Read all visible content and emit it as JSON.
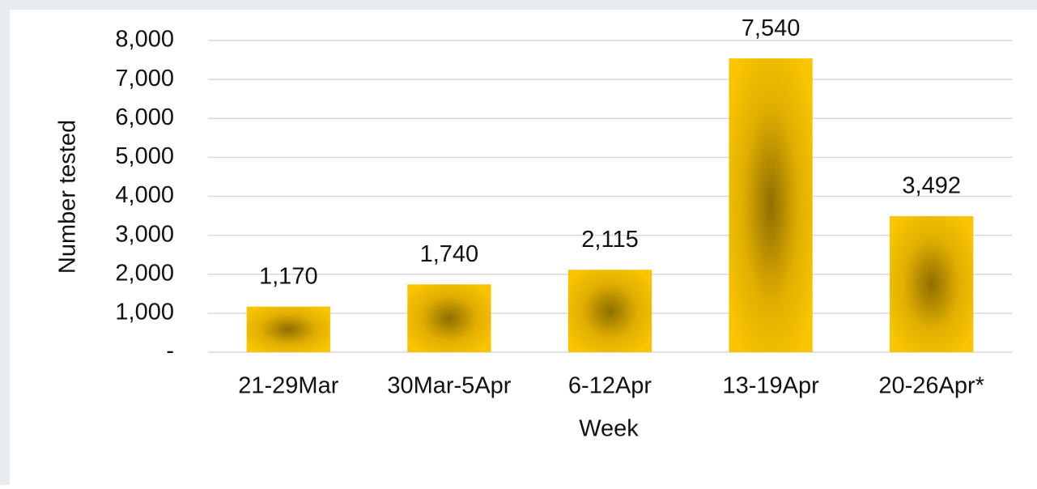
{
  "chart_data": {
    "type": "bar",
    "categories": [
      "21-29Mar",
      "30Mar-5Apr",
      "6-12Apr",
      "13-19Apr",
      "20-26Apr*"
    ],
    "values": [
      1170,
      1740,
      2115,
      7540,
      3492
    ],
    "value_labels": [
      "1,170",
      "1,740",
      "2,115",
      "7,540",
      "3,492"
    ],
    "color": "#f7c300",
    "xlabel": "Week",
    "ylabel": "Number tested",
    "ylim": [
      0,
      8000
    ],
    "yticks": [
      {
        "value": 0,
        "label": "-"
      },
      {
        "value": 1000,
        "label": "1,000"
      },
      {
        "value": 2000,
        "label": "2,000"
      },
      {
        "value": 3000,
        "label": "3,000"
      },
      {
        "value": 4000,
        "label": "4,000"
      },
      {
        "value": 5000,
        "label": "5,000"
      },
      {
        "value": 6000,
        "label": "6,000"
      },
      {
        "value": 7000,
        "label": "7,000"
      },
      {
        "value": 8000,
        "label": "8,000"
      }
    ],
    "grid": true
  }
}
